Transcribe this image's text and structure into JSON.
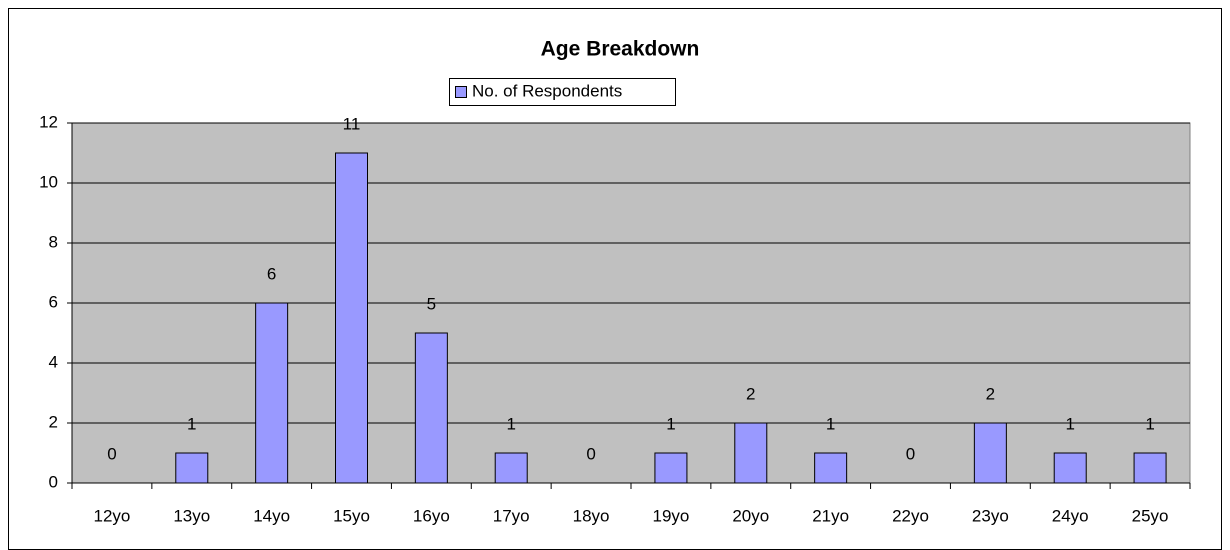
{
  "chart_data": {
    "type": "bar",
    "title": "Age Breakdown",
    "categories": [
      "12yo",
      "13yo",
      "14yo",
      "15yo",
      "16yo",
      "17yo",
      "18yo",
      "19yo",
      "20yo",
      "21yo",
      "22yo",
      "23yo",
      "24yo",
      "25yo"
    ],
    "series": [
      {
        "name": "No. of Respondents",
        "color": "#9999ff",
        "values": [
          0,
          1,
          6,
          11,
          5,
          1,
          0,
          1,
          2,
          1,
          0,
          2,
          1,
          1
        ]
      }
    ],
    "ylim": [
      0,
      12
    ],
    "yticks": [
      0,
      2,
      4,
      6,
      8,
      10,
      12
    ],
    "grid": true,
    "legend": "top"
  }
}
